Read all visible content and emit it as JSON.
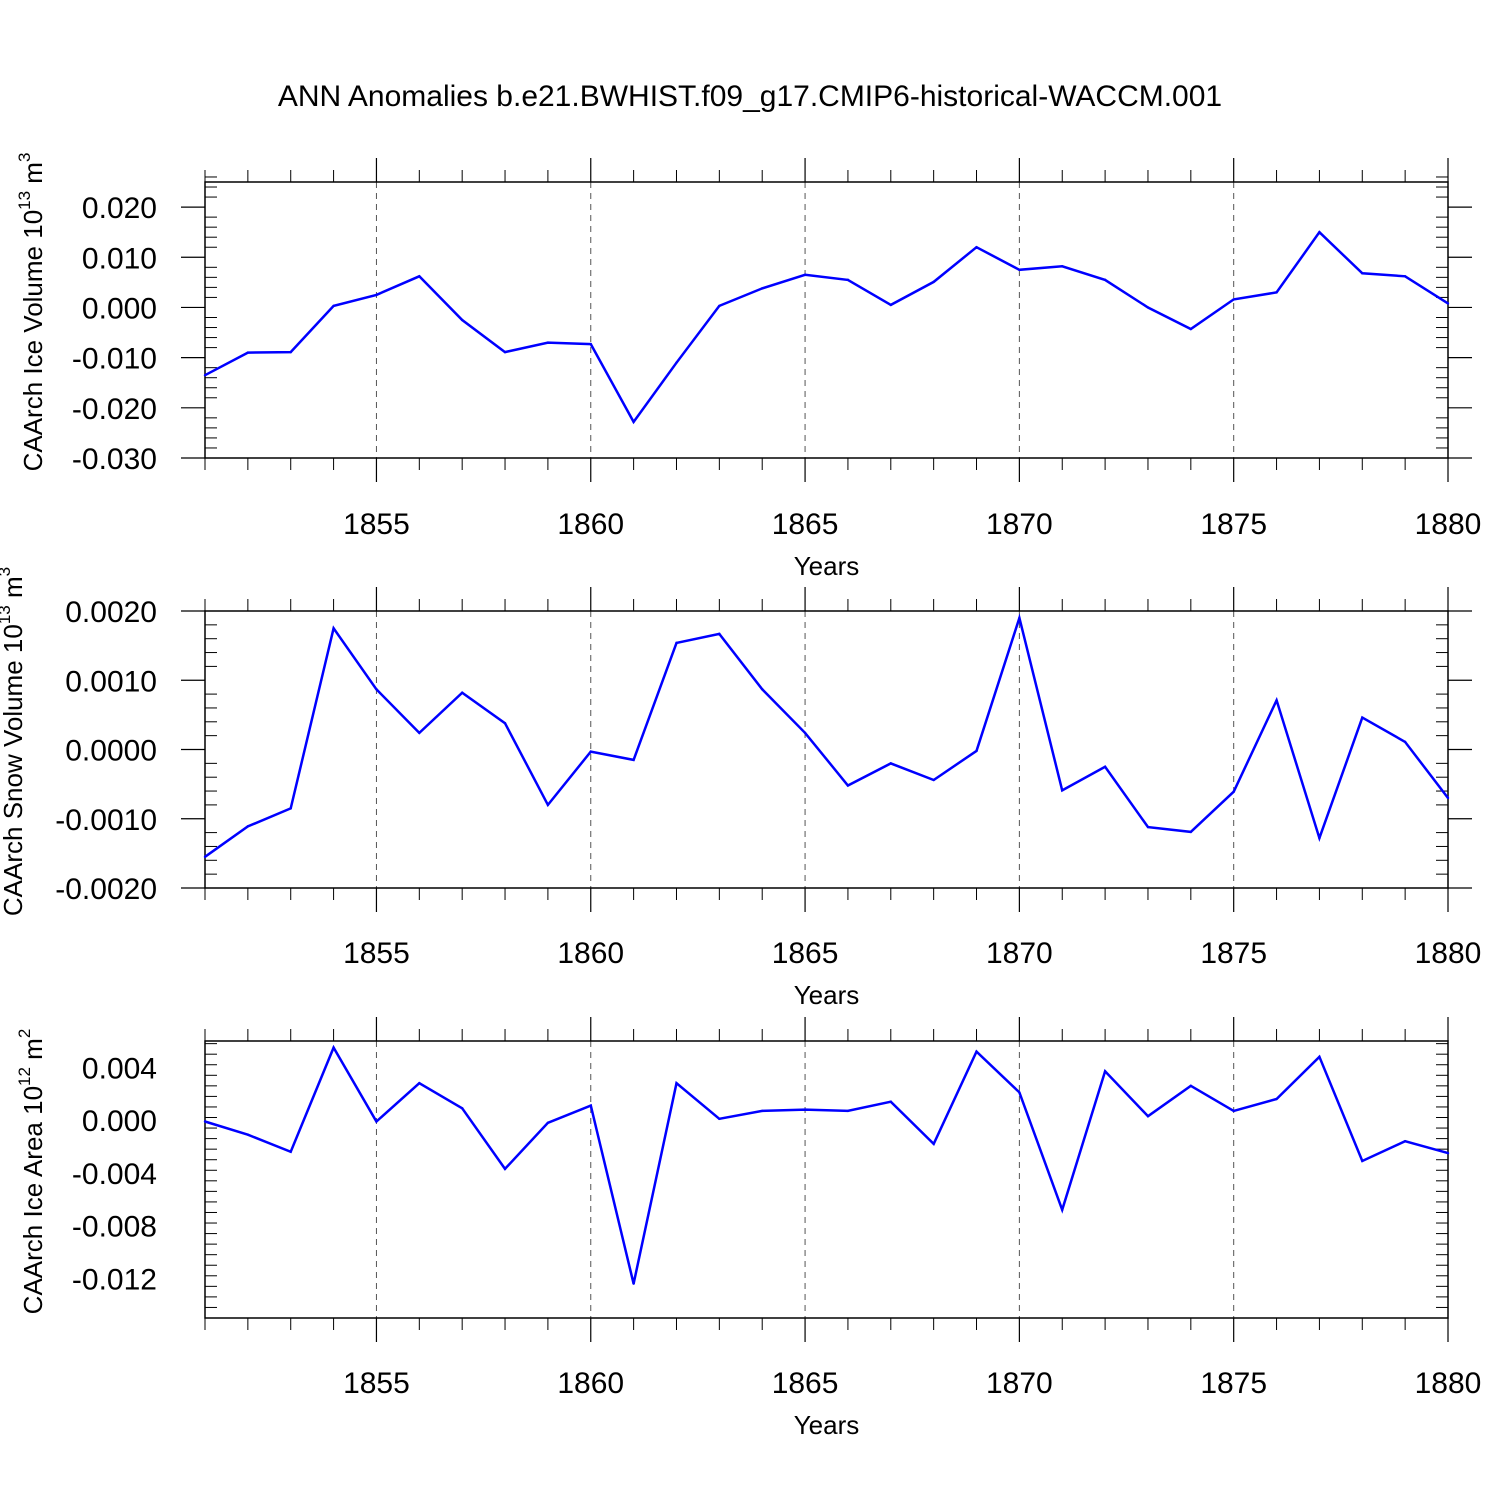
{
  "title": "ANN Anomalies b.e21.BWHIST.f09_g17.CMIP6-historical-WACCM.001",
  "colors": {
    "line": "#0000ff",
    "axis": "#000000",
    "grid": "#555555",
    "background": "#ffffff"
  },
  "chart_data": [
    {
      "type": "line",
      "xlabel": "Years",
      "ylabel": "CAArch Ice Volume 10",
      "ylabel_exp": "13",
      "ylabel_unit": "m",
      "ylabel_unit_exp": "3",
      "xlim": [
        1851,
        1880
      ],
      "ylim": [
        -0.03,
        0.025
      ],
      "xticks": [
        1855,
        1860,
        1865,
        1870,
        1875,
        1880
      ],
      "xtick_labels": [
        "1855",
        "1860",
        "1865",
        "1870",
        "1875",
        "1880"
      ],
      "yticks": [
        -0.03,
        -0.02,
        -0.01,
        0.0,
        0.01,
        0.02
      ],
      "ytick_labels": [
        "-0.030",
        "-0.020",
        "-0.010",
        "0.000",
        "0.010",
        "0.020"
      ],
      "grid": "vertical dashed at major x ticks",
      "x": [
        1851,
        1852,
        1853,
        1854,
        1855,
        1856,
        1857,
        1858,
        1859,
        1860,
        1861,
        1862,
        1863,
        1864,
        1865,
        1866,
        1867,
        1868,
        1869,
        1870,
        1871,
        1872,
        1873,
        1874,
        1875,
        1876,
        1877,
        1878,
        1879,
        1880
      ],
      "values": [
        -0.0135,
        -0.009,
        -0.0089,
        0.0003,
        0.0025,
        0.0062,
        -0.0025,
        -0.0089,
        -0.007,
        -0.0073,
        -0.0228,
        -0.011,
        0.0003,
        0.0038,
        0.0065,
        0.0055,
        0.0005,
        0.0051,
        0.012,
        0.0075,
        0.0082,
        0.0055,
        0.0,
        -0.0043,
        0.0016,
        0.003,
        0.015,
        0.0068,
        0.0062,
        0.0008
      ]
    },
    {
      "type": "line",
      "xlabel": "Years",
      "ylabel": "CAArch Snow Volume 10",
      "ylabel_exp": "13",
      "ylabel_unit": "m",
      "ylabel_unit_exp": "3",
      "xlim": [
        1851,
        1880
      ],
      "ylim": [
        -0.002,
        0.002
      ],
      "xticks": [
        1855,
        1860,
        1865,
        1870,
        1875,
        1880
      ],
      "xtick_labels": [
        "1855",
        "1860",
        "1865",
        "1870",
        "1875",
        "1880"
      ],
      "yticks": [
        -0.002,
        -0.001,
        0.0,
        0.001,
        0.002
      ],
      "ytick_labels": [
        "-0.0020",
        "-0.0010",
        "0.0000",
        "0.0010",
        "0.0020"
      ],
      "grid": "vertical dashed at major x ticks",
      "x": [
        1851,
        1852,
        1853,
        1854,
        1855,
        1856,
        1857,
        1858,
        1859,
        1860,
        1861,
        1862,
        1863,
        1864,
        1865,
        1866,
        1867,
        1868,
        1869,
        1870,
        1871,
        1872,
        1873,
        1874,
        1875,
        1876,
        1877,
        1878,
        1879,
        1880
      ],
      "values": [
        -0.00155,
        -0.00111,
        -0.00085,
        0.00175,
        0.00087,
        0.00024,
        0.00082,
        0.00038,
        -0.0008,
        -3e-05,
        -0.00015,
        0.00154,
        0.00167,
        0.00087,
        0.00024,
        -0.00052,
        -0.0002,
        -0.00044,
        -2e-05,
        0.0019,
        -0.00059,
        -0.00025,
        -0.00112,
        -0.00119,
        -0.00061,
        0.00071,
        -0.00128,
        0.00046,
        0.00011,
        -0.0007
      ]
    },
    {
      "type": "line",
      "xlabel": "Years",
      "ylabel": "CAArch Ice Area 10",
      "ylabel_exp": "12",
      "ylabel_unit": "m",
      "ylabel_unit_exp": "2",
      "xlim": [
        1851,
        1880
      ],
      "ylim": [
        -0.015,
        0.006
      ],
      "xticks": [
        1855,
        1860,
        1865,
        1870,
        1875,
        1880
      ],
      "xtick_labels": [
        "1855",
        "1860",
        "1865",
        "1870",
        "1875",
        "1880"
      ],
      "yticks": [
        -0.012,
        -0.008,
        -0.004,
        0.0,
        0.004
      ],
      "ytick_labels": [
        "-0.012",
        "-0.008",
        "-0.004",
        "0.000",
        "0.004"
      ],
      "grid": "vertical dashed at major x ticks",
      "x": [
        1851,
        1852,
        1853,
        1854,
        1855,
        1856,
        1857,
        1858,
        1859,
        1860,
        1861,
        1862,
        1863,
        1864,
        1865,
        1866,
        1867,
        1868,
        1869,
        1870,
        1871,
        1872,
        1873,
        1874,
        1875,
        1876,
        1877,
        1878,
        1879,
        1880
      ],
      "values": [
        -0.0001,
        -0.0011,
        -0.0024,
        0.0055,
        -0.0001,
        0.0028,
        0.0009,
        -0.0037,
        -0.0002,
        0.0011,
        -0.0124,
        0.0028,
        0.0001,
        0.0007,
        0.0008,
        0.0007,
        0.0014,
        -0.0018,
        0.0052,
        0.0021,
        -0.0068,
        0.0037,
        0.0003,
        0.0026,
        0.0007,
        0.0016,
        0.0048,
        -0.0031,
        -0.0016,
        -0.0025
      ]
    }
  ]
}
